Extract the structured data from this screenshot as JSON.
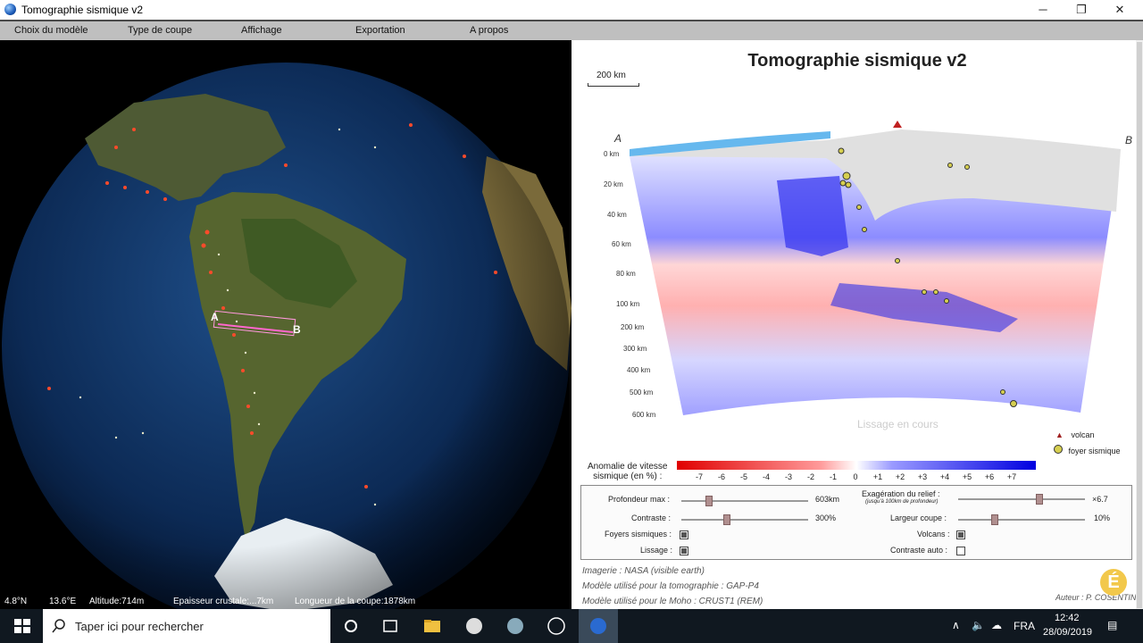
{
  "window": {
    "title": "Tomographie sismique v2",
    "minimize": "─",
    "maximize": "❐",
    "close": "✕"
  },
  "menu": [
    "Choix du modèle",
    "Type de coupe",
    "Affichage",
    "Exportation",
    "A propos"
  ],
  "globe": {
    "label_a": "A",
    "label_b": "B",
    "status": {
      "lat": "4.8°N",
      "lon": "13.6°E",
      "altitude": "Altitude:714m",
      "crust": "Epaisseur crustale:...7km",
      "section_length": "Longueur de la coupe:1878km"
    }
  },
  "panel": {
    "title": "Tomographie sismique v2",
    "scale_label": "200 km",
    "point_a": "A",
    "point_b": "B",
    "overlay_text": "Lissage en cours",
    "depth_labels": [
      "0 km",
      "20 km",
      "40 km",
      "60 km",
      "80 km",
      "100 km",
      "200 km",
      "300 km",
      "400 km",
      "500 km",
      "600 km"
    ],
    "legend": {
      "volcano": "volcan",
      "quake": "foyer sismique"
    },
    "colorbar": {
      "title_line1": "Anomalie de vitesse",
      "title_line2": "sismique (en %) :",
      "ticks": [
        "-7",
        "-6",
        "-5",
        "-4",
        "-3",
        "-2",
        "-1",
        "0",
        "+1",
        "+2",
        "+3",
        "+4",
        "+5",
        "+6",
        "+7"
      ],
      "low_color": "#e00000",
      "high_color": "#0000e0"
    },
    "controls": {
      "depth_label": "Profondeur max :",
      "depth_value": "603km",
      "contrast_label": "Contraste :",
      "contrast_value": "300%",
      "relief_label": "Exagération du relief :",
      "relief_note": "(jusqu'à 100km de profondeur)",
      "relief_value": "×6.7",
      "width_label": "Largeur coupe :",
      "width_value": "10%",
      "quakes_label": "Foyers sismiques :",
      "volcanoes_label": "Volcans :",
      "smooth_label": "Lissage :",
      "autocontrast_label": "Contraste auto :"
    },
    "credits": [
      "Imagerie : NASA (visible earth)",
      "Modèle utilisé pour la tomographie : GAP-P4",
      "Modèle utilisé pour le Moho : CRUST1 (REM)"
    ],
    "author": "Auteur : P. COSENTINO",
    "logo_letter": "É"
  },
  "taskbar": {
    "search_placeholder": "Taper ici pour rechercher",
    "lang": "FRA",
    "time": "12:42",
    "date": "28/09/2019"
  }
}
